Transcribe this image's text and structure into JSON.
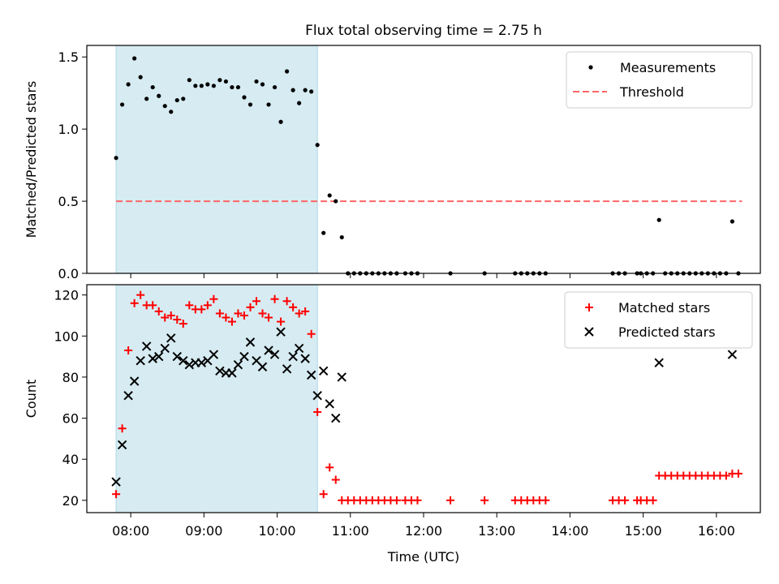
{
  "title": "Flux total observing time = 2.75 h",
  "colors": {
    "shade": "#add8e6",
    "threshold": "#ff6666",
    "measurement": "#000000",
    "matched": "#ff0000",
    "predicted": "#000000"
  },
  "chart_data": [
    {
      "type": "scatter",
      "ylabel": "Matched/Predicted stars",
      "ylim": [
        0,
        1.58
      ],
      "yticks": [
        {
          "v": 0.0,
          "label": "0.0"
        },
        {
          "v": 0.5,
          "label": "0.5"
        },
        {
          "v": 1.0,
          "label": "1.0"
        },
        {
          "v": 1.5,
          "label": "1.5"
        }
      ],
      "shaded_span": [
        "07:48",
        "10:33"
      ],
      "legend": {
        "position": "top-right",
        "entries": [
          "Measurements",
          "Threshold"
        ]
      },
      "threshold": {
        "name": "Threshold",
        "value": 0.5,
        "x_range": [
          "07:48",
          "16:21"
        ]
      },
      "series": [
        {
          "name": "Measurements",
          "x": [
            "07:48",
            "07:53",
            "07:58",
            "08:03",
            "08:08",
            "08:13",
            "08:18",
            "08:23",
            "08:28",
            "08:33",
            "08:38",
            "08:43",
            "08:48",
            "08:53",
            "08:58",
            "09:03",
            "09:08",
            "09:13",
            "09:18",
            "09:23",
            "09:28",
            "09:33",
            "09:38",
            "09:43",
            "09:48",
            "09:53",
            "09:58",
            "10:03",
            "10:08",
            "10:13",
            "10:18",
            "10:23",
            "10:28",
            "10:33",
            "10:38",
            "10:43",
            "10:48",
            "10:53",
            "10:58",
            "11:03",
            "11:08",
            "11:13",
            "11:18",
            "11:23",
            "11:28",
            "11:33",
            "11:38",
            "11:45",
            "11:50",
            "11:55",
            "12:22",
            "12:50",
            "13:15",
            "13:20",
            "13:25",
            "13:30",
            "13:35",
            "13:40",
            "14:35",
            "14:40",
            "14:45",
            "14:55",
            "14:58",
            "15:03",
            "15:08",
            "15:13",
            "15:18",
            "15:23",
            "15:28",
            "15:33",
            "15:38",
            "15:43",
            "15:48",
            "15:53",
            "15:58",
            "16:03",
            "16:08",
            "16:13",
            "16:18"
          ],
          "y": [
            0.8,
            1.17,
            1.31,
            1.49,
            1.36,
            1.21,
            1.29,
            1.23,
            1.16,
            1.12,
            1.2,
            1.21,
            1.34,
            1.3,
            1.3,
            1.31,
            1.3,
            1.34,
            1.33,
            1.29,
            1.29,
            1.22,
            1.17,
            1.33,
            1.31,
            1.17,
            1.29,
            1.05,
            1.4,
            1.27,
            1.18,
            1.27,
            1.26,
            0.89,
            0.28,
            0.54,
            0.5,
            0.25,
            0,
            0,
            0,
            0,
            0,
            0,
            0,
            0,
            0,
            0,
            0,
            0,
            0,
            0,
            0,
            0,
            0,
            0,
            0,
            0,
            0,
            0,
            0,
            0,
            0,
            0,
            0,
            0.37,
            0,
            0,
            0,
            0,
            0,
            0,
            0,
            0,
            0,
            0,
            0,
            0.36,
            0
          ]
        }
      ]
    },
    {
      "type": "scatter",
      "xlabel": "Time (UTC)",
      "ylabel": "Count",
      "ylim": [
        14,
        125
      ],
      "yticks": [
        {
          "v": 20,
          "label": "20"
        },
        {
          "v": 40,
          "label": "40"
        },
        {
          "v": 60,
          "label": "60"
        },
        {
          "v": 80,
          "label": "80"
        },
        {
          "v": 100,
          "label": "100"
        },
        {
          "v": 120,
          "label": "120"
        }
      ],
      "xlim": [
        "07:24",
        "16:36"
      ],
      "xticks": [
        "08:00",
        "09:00",
        "10:00",
        "11:00",
        "12:00",
        "13:00",
        "14:00",
        "15:00",
        "16:00"
      ],
      "shaded_span": [
        "07:48",
        "10:33"
      ],
      "legend": {
        "position": "top-right",
        "entries": [
          "Matched stars",
          "Predicted stars"
        ]
      },
      "series": [
        {
          "name": "Matched stars",
          "marker": "plus",
          "x": [
            "07:48",
            "07:53",
            "07:58",
            "08:03",
            "08:08",
            "08:13",
            "08:18",
            "08:23",
            "08:28",
            "08:33",
            "08:38",
            "08:43",
            "08:48",
            "08:53",
            "08:58",
            "09:03",
            "09:08",
            "09:13",
            "09:18",
            "09:23",
            "09:28",
            "09:33",
            "09:38",
            "09:43",
            "09:48",
            "09:53",
            "09:58",
            "10:03",
            "10:08",
            "10:13",
            "10:18",
            "10:23",
            "10:28",
            "10:33",
            "10:38",
            "10:43",
            "10:48",
            "10:53",
            "10:58",
            "11:03",
            "11:08",
            "11:13",
            "11:18",
            "11:23",
            "11:28",
            "11:33",
            "11:38",
            "11:45",
            "11:50",
            "11:55",
            "12:22",
            "12:50",
            "13:15",
            "13:20",
            "13:25",
            "13:30",
            "13:35",
            "13:40",
            "14:35",
            "14:40",
            "14:45",
            "14:55",
            "14:58",
            "15:03",
            "15:08",
            "15:13",
            "15:18",
            "15:23",
            "15:28",
            "15:33",
            "15:38",
            "15:43",
            "15:48",
            "15:53",
            "15:58",
            "16:03",
            "16:08",
            "16:13",
            "16:18"
          ],
          "y": [
            23,
            55,
            93,
            116,
            120,
            115,
            115,
            112,
            109,
            110,
            108,
            106,
            115,
            113,
            113,
            115,
            118,
            111,
            109,
            107,
            111,
            110,
            114,
            117,
            111,
            109,
            118,
            107,
            117,
            114,
            111,
            112,
            101,
            63,
            23,
            36,
            30,
            20,
            20,
            20,
            20,
            20,
            20,
            20,
            20,
            20,
            20,
            20,
            20,
            20,
            20,
            20,
            20,
            20,
            20,
            20,
            20,
            20,
            20,
            20,
            20,
            20,
            20,
            20,
            20,
            32,
            32,
            32,
            32,
            32,
            32,
            32,
            32,
            32,
            32,
            32,
            32,
            33,
            33
          ]
        },
        {
          "name": "Predicted stars",
          "marker": "x",
          "x": [
            "07:48",
            "07:53",
            "07:58",
            "08:03",
            "08:08",
            "08:13",
            "08:18",
            "08:23",
            "08:28",
            "08:33",
            "08:38",
            "08:43",
            "08:48",
            "08:53",
            "08:58",
            "09:03",
            "09:08",
            "09:13",
            "09:18",
            "09:23",
            "09:28",
            "09:33",
            "09:38",
            "09:43",
            "09:48",
            "09:53",
            "09:58",
            "10:03",
            "10:08",
            "10:13",
            "10:18",
            "10:23",
            "10:28",
            "10:33",
            "10:38",
            "10:43",
            "10:48",
            "10:53",
            "15:13",
            "16:13"
          ],
          "y": [
            29,
            47,
            71,
            78,
            88,
            95,
            89,
            90,
            94,
            99,
            90,
            88,
            86,
            87,
            87,
            88,
            91,
            83,
            82,
            82,
            86,
            90,
            97,
            88,
            85,
            93,
            91,
            102,
            84,
            90,
            94,
            89,
            81,
            71,
            83,
            67,
            60,
            80,
            87,
            91
          ]
        }
      ]
    }
  ]
}
